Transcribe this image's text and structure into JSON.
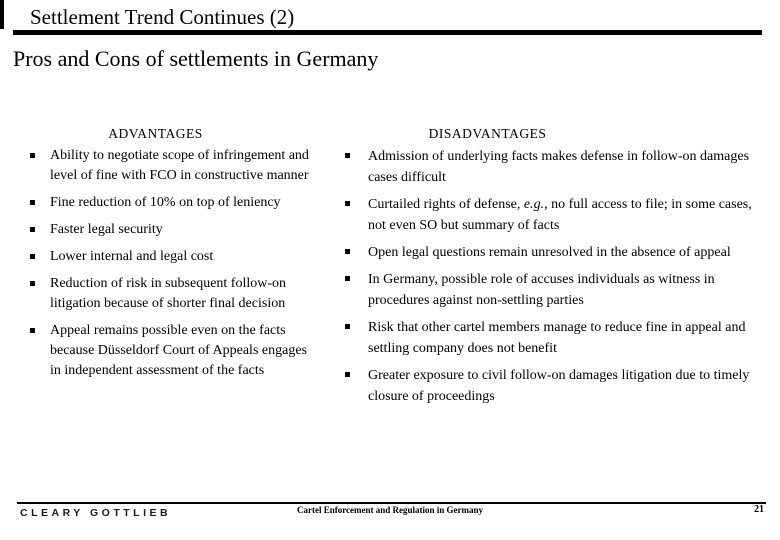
{
  "title": "Settlement Trend Continues (2)",
  "subtitle": "Pros and Cons of settlements in Germany",
  "columns": [
    {
      "header": "ADVANTAGES",
      "bullets": [
        {
          "runs": [
            {
              "text": "Ability to negotiate scope of infringement and level of fine with FCO in constructive manner"
            }
          ]
        },
        {
          "runs": [
            {
              "text": "Fine reduction of 10% on top of leniency"
            }
          ]
        },
        {
          "runs": [
            {
              "text": "Faster legal security"
            }
          ]
        },
        {
          "runs": [
            {
              "text": "Lower internal and legal cost"
            }
          ]
        },
        {
          "runs": [
            {
              "text": "Reduction of risk in subsequent follow-on litigation because of shorter final decision"
            }
          ]
        },
        {
          "runs": [
            {
              "text": "Appeal remains possible even on the facts because Düsseldorf Court of Appeals engages in independent assessment of the facts"
            }
          ]
        }
      ]
    },
    {
      "header": "DISADVANTAGES",
      "bullets": [
        {
          "runs": [
            {
              "text": "Admission of underlying facts makes defense in follow-on damages cases difficult"
            }
          ]
        },
        {
          "runs": [
            {
              "text": "Curtailed rights of defense, "
            },
            {
              "text": "e.g.",
              "italic": true
            },
            {
              "text": ", no full access to file; in some cases, not even SO but summary of facts"
            }
          ]
        },
        {
          "runs": [
            {
              "text": "Open legal questions remain unresolved in the absence of appeal"
            }
          ]
        },
        {
          "runs": [
            {
              "text": "In Germany, possible role of accuses individuals as witness in procedures against non-settling parties"
            }
          ]
        },
        {
          "runs": [
            {
              "text": "Risk that other cartel members manage to reduce fine in appeal and settling company does not benefit"
            }
          ]
        },
        {
          "runs": [
            {
              "text": "Greater exposure to civil follow-on damages litigation due to timely closure of proceedings"
            }
          ]
        }
      ]
    }
  ],
  "footer": {
    "logo": "CLEARY GOTTLIEB",
    "center": "Cartel Enforcement and Regulation in Germany",
    "page": "21"
  },
  "colors": {
    "background": "#ffffff",
    "text": "#000000",
    "rule": "#000000"
  }
}
